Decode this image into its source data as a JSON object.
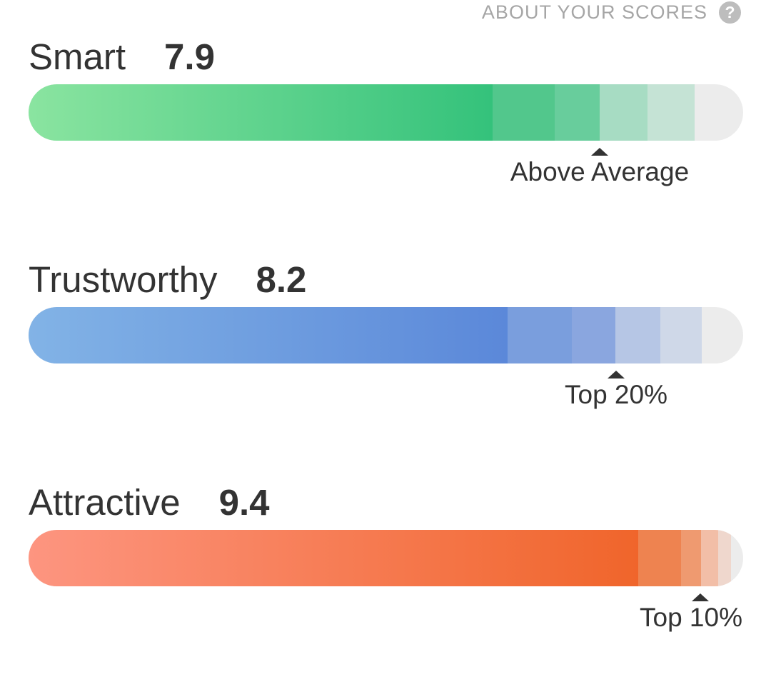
{
  "about": {
    "label": "ABOUT YOUR SCORES",
    "icon": "question-mark-circle-icon",
    "icon_glyph": "?"
  },
  "scores": [
    {
      "name": "Smart",
      "value": "7.9",
      "rating": "Above Average",
      "fill_fraction": 0.79,
      "marker_fraction": 0.799,
      "colors": {
        "gradient_start": "#8ae4a0",
        "gradient_end": "#34c27b",
        "segments": [
          "#52c78c",
          "#68cd9c",
          "#a7dcc3",
          "#c5e3d5"
        ]
      }
    },
    {
      "name": "Trustworthy",
      "value": "8.2",
      "rating": "Top 20%",
      "fill_fraction": 0.82,
      "marker_fraction": 0.822,
      "colors": {
        "gradient_start": "#82b3e6",
        "gradient_end": "#5b88d9",
        "segments": [
          "#7a9edd",
          "#8aa6df",
          "#b6c6e5",
          "#cfd8e8"
        ]
      }
    },
    {
      "name": "Attractive",
      "value": "9.4",
      "rating": "Top 10%",
      "fill_fraction": 0.94,
      "marker_fraction": 0.94,
      "colors": {
        "gradient_start": "#fd9580",
        "gradient_end": "#f0652b",
        "segments": [
          "#ee8350",
          "#ef9a70",
          "#f2bea7",
          "#efd7cd"
        ]
      }
    }
  ]
}
